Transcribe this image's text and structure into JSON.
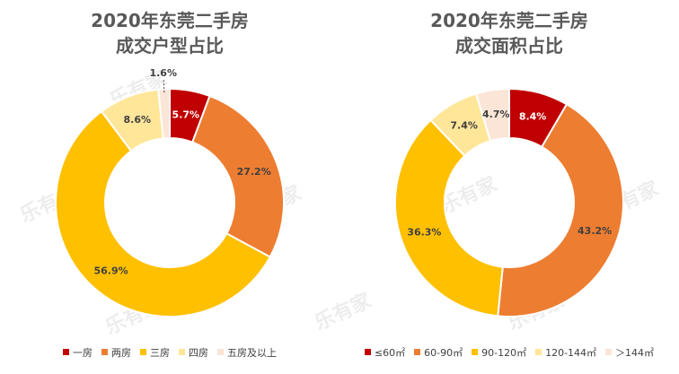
{
  "chart_data": [
    {
      "type": "pie",
      "title": "2020年东莞二手房",
      "subtitle": "成交户型占比",
      "categories": [
        "一房",
        "两房",
        "三房",
        "四房",
        "五房及以上"
      ],
      "values": [
        5.7,
        27.2,
        56.9,
        8.6,
        1.6
      ],
      "labels": [
        "5.7%",
        "27.2%",
        "56.9%",
        "8.6%",
        "1.6%"
      ],
      "colors": [
        "#C00000",
        "#ED7D31",
        "#FFC000",
        "#FFE699",
        "#FBE5D6"
      ],
      "label_colors": [
        "#ffffff",
        "#404040",
        "#404040",
        "#404040",
        "#404040"
      ],
      "legend_position": "bottom"
    },
    {
      "type": "pie",
      "title": "2020年东莞二手房",
      "subtitle": "成交面积占比",
      "categories": [
        "≤60㎡",
        "60-90㎡",
        "90-120㎡",
        "120-144㎡",
        "＞144㎡"
      ],
      "values": [
        8.4,
        43.2,
        36.3,
        7.4,
        4.7
      ],
      "labels": [
        "8.4%",
        "43.2%",
        "36.3%",
        "7.4%",
        "4.7%"
      ],
      "colors": [
        "#C00000",
        "#ED7D31",
        "#FFC000",
        "#FFE699",
        "#FBE5D6"
      ],
      "label_colors": [
        "#ffffff",
        "#404040",
        "#404040",
        "#404040",
        "#404040"
      ],
      "legend_position": "bottom"
    }
  ],
  "watermark_text": "乐有家"
}
